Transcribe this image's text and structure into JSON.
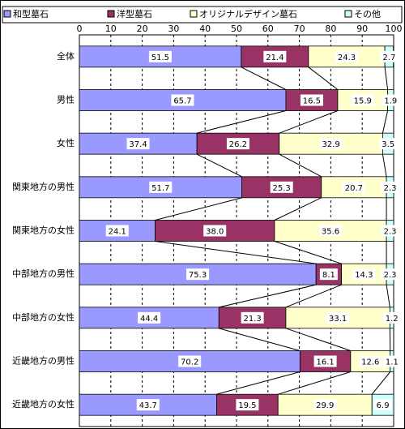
{
  "chart_data": {
    "type": "stacked-bar-horizontal",
    "categories": [
      "全体",
      "男性",
      "女性",
      "関東地方の男性",
      "関東地方の女性",
      "中部地方の男性",
      "中部地方の女性",
      "近畿地方の男性",
      "近畿地方の女性"
    ],
    "series": [
      {
        "name": "和型墓石",
        "color": "#9999ff",
        "values": [
          51.5,
          65.7,
          37.4,
          51.7,
          24.1,
          75.3,
          44.4,
          70.2,
          43.7
        ]
      },
      {
        "name": "洋型墓石",
        "color": "#993366",
        "values": [
          21.4,
          16.5,
          26.2,
          25.3,
          38.0,
          8.1,
          21.3,
          16.1,
          19.5
        ],
        "value_labels": [
          "21.4",
          "16.5",
          "26.2",
          "25.3",
          "38.0",
          "8.1",
          "21.3",
          "16.1",
          "19.5"
        ]
      },
      {
        "name": "オリジナルデザイン墓石",
        "color": "#ffffcc",
        "values": [
          24.3,
          15.9,
          32.9,
          20.7,
          35.6,
          14.3,
          33.1,
          12.6,
          29.9
        ]
      },
      {
        "name": "その他",
        "color": "#ccffff",
        "values": [
          2.7,
          1.9,
          3.5,
          2.3,
          2.3,
          2.3,
          1.2,
          1.1,
          6.9
        ]
      }
    ],
    "xlim": [
      0,
      100
    ],
    "xticks": [
      0,
      10,
      20,
      30,
      40,
      50,
      60,
      70,
      80,
      90,
      100
    ],
    "grid": true
  }
}
